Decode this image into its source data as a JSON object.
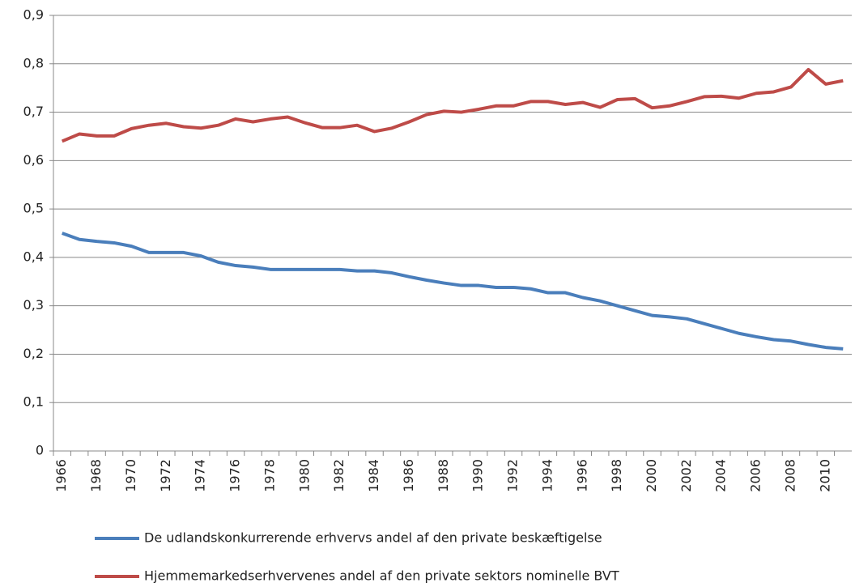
{
  "chart_data": {
    "type": "line",
    "categories": [
      "1966",
      null,
      "1968",
      null,
      "1970",
      null,
      "1972",
      null,
      "1974",
      null,
      "1976",
      null,
      "1978",
      null,
      "1980",
      null,
      "1982",
      null,
      "1984",
      null,
      "1986",
      null,
      "1988",
      null,
      "1990",
      null,
      "1992",
      null,
      "1994",
      null,
      "1996",
      null,
      "1998",
      null,
      "2000",
      null,
      "2002",
      null,
      "2004",
      null,
      "2006",
      null,
      "2008",
      null,
      "2010",
      null
    ],
    "series": [
      {
        "name": "De udlandskonkurrerende erhvervs andel af den private beskæftigelse",
        "color": "#4a7ebb",
        "values": [
          0.45,
          0.437,
          0.433,
          0.43,
          0.423,
          0.41,
          0.41,
          0.41,
          0.403,
          0.39,
          0.383,
          0.38,
          0.375,
          0.375,
          0.375,
          0.375,
          0.375,
          0.372,
          0.372,
          0.368,
          0.36,
          0.353,
          0.347,
          0.342,
          0.342,
          0.338,
          0.338,
          0.335,
          0.327,
          0.327,
          0.317,
          0.31,
          0.3,
          0.29,
          0.28,
          0.277,
          0.273,
          0.263,
          0.253,
          0.243,
          0.236,
          0.23,
          0.227,
          0.22,
          0.214,
          0.211
        ]
      },
      {
        "name": "Hjemmemarkedserhvervenes andel af den private sektors nominelle BVT",
        "color": "#be4b48",
        "values": [
          0.64,
          0.655,
          0.651,
          0.651,
          0.666,
          0.673,
          0.677,
          0.67,
          0.667,
          0.673,
          0.686,
          0.68,
          0.686,
          0.69,
          0.678,
          0.668,
          0.668,
          0.673,
          0.66,
          0.667,
          0.68,
          0.695,
          0.702,
          0.7,
          0.706,
          0.713,
          0.713,
          0.722,
          0.722,
          0.716,
          0.72,
          0.71,
          0.726,
          0.728,
          0.709,
          0.713,
          0.722,
          0.732,
          0.733,
          0.729,
          0.739,
          0.742,
          0.752,
          0.788,
          0.758,
          0.765
        ]
      }
    ],
    "ylim": [
      0,
      0.9
    ],
    "yticks": [
      0,
      {
        "value": 0.1,
        "label": "0,1"
      },
      {
        "value": 0.2,
        "label": "0,2"
      },
      {
        "value": 0.3,
        "label": "0,3"
      },
      {
        "value": 0.4,
        "label": "0,4"
      },
      {
        "value": 0.5,
        "label": "0,5"
      },
      {
        "value": 0.6,
        "label": "0,6"
      },
      {
        "value": 0.7,
        "label": "0,7"
      },
      {
        "value": 0.8,
        "label": "0,8"
      },
      {
        "value": 0.9,
        "label": "0,9"
      }
    ],
    "grid": true
  }
}
